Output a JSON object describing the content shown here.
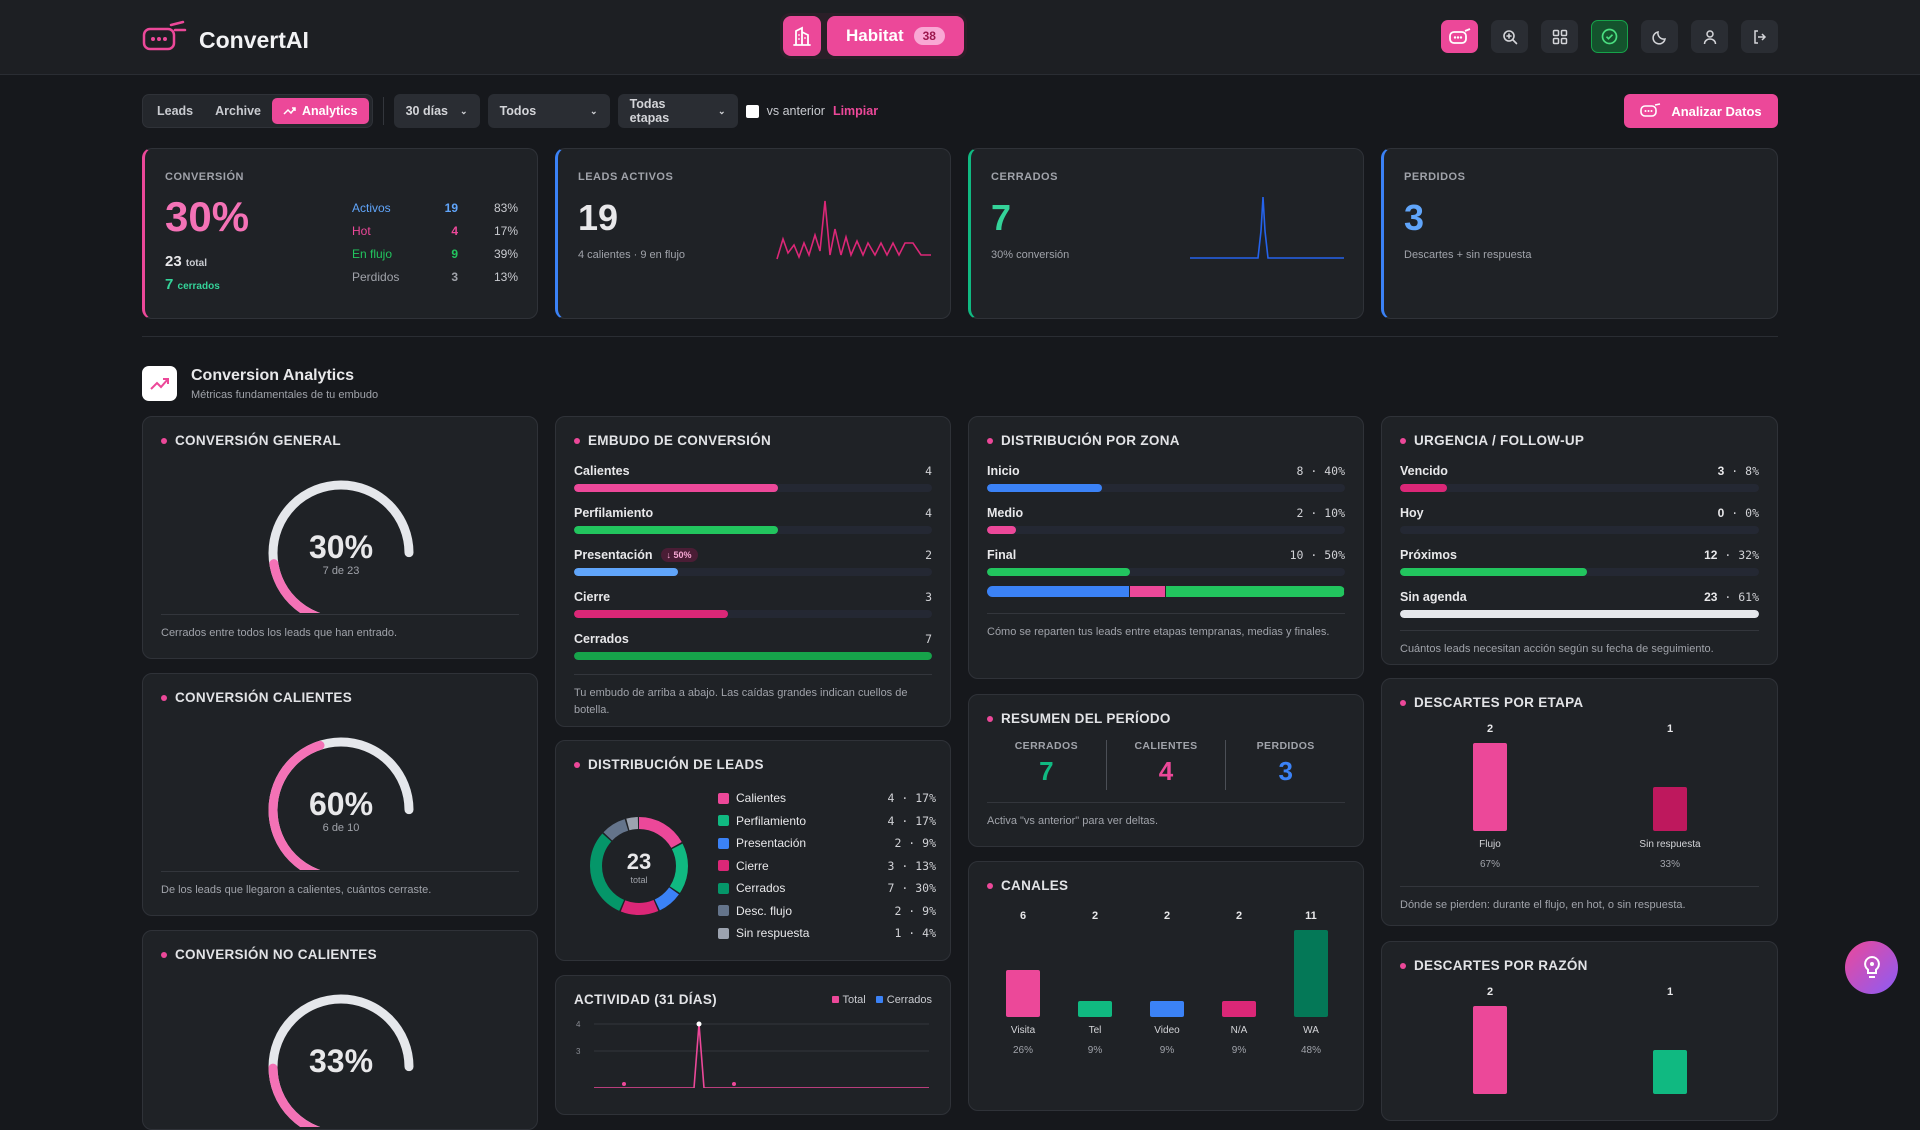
{
  "header": {
    "brand": "ConvertAI",
    "habitat_label": "Habitat",
    "habitat_count": "38"
  },
  "filters": {
    "tabs": [
      "Leads",
      "Archive",
      "Analytics"
    ],
    "period": "30 días",
    "scope": "Todos",
    "stages": "Todas etapas",
    "compare_label": "vs anterior",
    "clear": "Limpiar",
    "analyze_button": "Analizar Datos"
  },
  "kpis": {
    "conversion": {
      "label": "CONVERSIÓN",
      "value": "30%",
      "total_num": "23",
      "total_word": "total",
      "closed_num": "7",
      "closed_word": "cerrados",
      "rows": [
        {
          "name": "Activos",
          "count": "19",
          "pct": "83%",
          "color": "#60a5fa"
        },
        {
          "name": "Hot",
          "count": "4",
          "pct": "17%",
          "color": "#ec4899"
        },
        {
          "name": "En flujo",
          "count": "9",
          "pct": "39%",
          "color": "#22c55e"
        },
        {
          "name": "Perdidos",
          "count": "3",
          "pct": "13%",
          "color": "#a0a3aa"
        }
      ]
    },
    "active": {
      "label": "LEADS ACTIVOS",
      "value": "19",
      "sub": "4 calientes · 9 en flujo"
    },
    "closed": {
      "label": "CERRADOS",
      "value": "7",
      "sub": "30% conversión"
    },
    "lost": {
      "label": "PERDIDOS",
      "value": "3",
      "sub": "Descartes + sin respuesta"
    }
  },
  "section": {
    "title": "Conversion Analytics",
    "subtitle": "Métricas fundamentales de tu embudo"
  },
  "gauges": [
    {
      "title": "CONVERSIÓN GENERAL",
      "pct": "30%",
      "fraction": 0.3,
      "detail": "7 de 23",
      "foot": "Cerrados entre todos los leads que han entrado."
    },
    {
      "title": "CONVERSIÓN CALIENTES",
      "pct": "60%",
      "fraction": 0.6,
      "detail": "6 de 10",
      "foot": "De los leads que llegaron a calientes, cuántos cerraste."
    },
    {
      "title": "CONVERSIÓN NO CALIENTES",
      "pct": "33%",
      "fraction": 0.33,
      "detail": "",
      "foot": ""
    }
  ],
  "funnel": {
    "title": "EMBUDO DE CONVERSIÓN",
    "rows": [
      {
        "label": "Calientes",
        "value": "4",
        "fraction": 0.57,
        "color": "#ec4899",
        "badge": ""
      },
      {
        "label": "Perfilamiento",
        "value": "4",
        "fraction": 0.57,
        "color": "#22c55e",
        "badge": ""
      },
      {
        "label": "Presentación",
        "value": "2",
        "fraction": 0.29,
        "color": "#60a5fa",
        "badge": "↓ 50%"
      },
      {
        "label": "Cierre",
        "value": "3",
        "fraction": 0.43,
        "color": "#db2777",
        "badge": ""
      },
      {
        "label": "Cerrados",
        "value": "7",
        "fraction": 1.0,
        "color": "#16a34a",
        "badge": ""
      }
    ],
    "foot": "Tu embudo de arriba a abajo. Las caídas grandes indican cuellos de botella."
  },
  "distribution": {
    "title": "DISTRIBUCIÓN DE LEADS",
    "total": "23",
    "total_word": "total",
    "items": [
      {
        "label": "Calientes",
        "count": "4",
        "pct": "17%",
        "value": 4,
        "color": "#ec4899"
      },
      {
        "label": "Perfilamiento",
        "count": "4",
        "pct": "17%",
        "value": 4,
        "color": "#10b981"
      },
      {
        "label": "Presentación",
        "count": "2",
        "pct": "9%",
        "value": 2,
        "color": "#3b82f6"
      },
      {
        "label": "Cierre",
        "count": "3",
        "pct": "13%",
        "value": 3,
        "color": "#db2777"
      },
      {
        "label": "Cerrados",
        "count": "7",
        "pct": "30%",
        "value": 7,
        "color": "#059669"
      },
      {
        "label": "Desc. flujo",
        "count": "2",
        "pct": "9%",
        "value": 2,
        "color": "#64748b"
      },
      {
        "label": "Sin respuesta",
        "count": "1",
        "pct": "4%",
        "value": 1,
        "color": "#9ca3af"
      }
    ]
  },
  "activity": {
    "title": "ACTIVIDAD (31 DÍAS)",
    "legend": [
      "Total",
      "Cerrados"
    ],
    "y_ticks": [
      "4",
      "3"
    ]
  },
  "zones": {
    "title": "DISTRIBUCIÓN POR ZONA",
    "rows": [
      {
        "label": "Inicio",
        "value": "8 · 40%",
        "fraction": 0.4,
        "color": "#3b82f6"
      },
      {
        "label": "Medio",
        "value": "2 · 10%",
        "fraction": 0.1,
        "color": "#ec4899"
      },
      {
        "label": "Final",
        "value": "10 · 50%",
        "fraction": 0.5,
        "color": "#22c55e"
      }
    ],
    "foot": "Cómo se reparten tus leads entre etapas tempranas, medias y finales."
  },
  "summary": {
    "title": "RESUMEN DEL PERÍODO",
    "items": [
      {
        "label": "CERRADOS",
        "value": "7",
        "color": "#10b981"
      },
      {
        "label": "CALIENTES",
        "value": "4",
        "color": "#ec4899"
      },
      {
        "label": "PERDIDOS",
        "value": "3",
        "color": "#3b82f6"
      }
    ],
    "foot": "Activa \"vs anterior\" para ver deltas."
  },
  "channels": {
    "title": "CANALES",
    "bars": [
      {
        "label": "Visita",
        "value": 6,
        "pct": "26%",
        "color": "#ec4899"
      },
      {
        "label": "Tel",
        "value": 2,
        "pct": "9%",
        "color": "#10b981"
      },
      {
        "label": "Video",
        "value": 2,
        "pct": "9%",
        "color": "#3b82f6"
      },
      {
        "label": "N/A",
        "value": 2,
        "pct": "9%",
        "color": "#db2777"
      },
      {
        "label": "WA",
        "value": 11,
        "pct": "48%",
        "color": "#047857"
      }
    ]
  },
  "urgency": {
    "title": "URGENCIA / FOLLOW-UP",
    "rows": [
      {
        "label": "Vencido",
        "count": "3",
        "pct": "8%",
        "fraction": 0.13,
        "color": "#db2777"
      },
      {
        "label": "Hoy",
        "count": "0",
        "pct": "0%",
        "fraction": 0.0,
        "color": "#ec4899"
      },
      {
        "label": "Próximos",
        "count": "12",
        "pct": "32%",
        "fraction": 0.52,
        "color": "#22c55e"
      },
      {
        "label": "Sin agenda",
        "count": "23",
        "pct": "61%",
        "fraction": 1.0,
        "color": "#e5e7eb"
      }
    ],
    "foot": "Cuántos leads necesitan acción según su fecha de seguimiento."
  },
  "discards_stage": {
    "title": "DESCARTES POR ETAPA",
    "bars": [
      {
        "label": "Flujo",
        "value": 2,
        "pct": "67%",
        "color": "#ec4899"
      },
      {
        "label": "Sin respuesta",
        "value": 1,
        "pct": "33%",
        "color": "#be185d"
      }
    ],
    "foot": "Dónde se pierden: durante el flujo, en hot, o sin respuesta."
  },
  "discards_reason": {
    "title": "DESCARTES POR RAZÓN",
    "bars": [
      {
        "label": "",
        "value": 2,
        "color": "#ec4899"
      },
      {
        "label": "",
        "value": 1,
        "color": "#10b981"
      }
    ]
  }
}
